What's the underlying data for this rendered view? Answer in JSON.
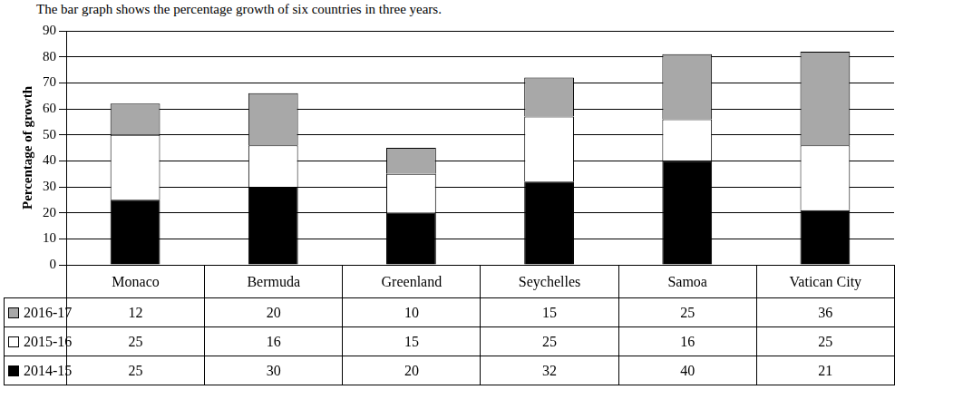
{
  "chart_data": {
    "type": "bar",
    "title": "The bar graph shows the percentage growth of six countries in three years.",
    "y_label": "Percentage of growth",
    "categories": [
      "Monaco",
      "Bermuda",
      "Greenland",
      "Seychelles",
      "Samoa",
      "Vatican City"
    ],
    "series": [
      {
        "name": "2014-15",
        "color": "#000000",
        "values": [
          25,
          30,
          20,
          32,
          40,
          21
        ]
      },
      {
        "name": "2015-16",
        "color": "#ffffff",
        "values": [
          25,
          16,
          15,
          25,
          16,
          25
        ]
      },
      {
        "name": "2016-17",
        "color": "#a8a8a8",
        "values": [
          12,
          20,
          10,
          15,
          25,
          36
        ]
      }
    ],
    "stacked": true,
    "ylim": [
      0,
      90
    ],
    "yticks": [
      0,
      10,
      20,
      30,
      40,
      50,
      60,
      70,
      80,
      90
    ],
    "grid": true,
    "tick_labels": "y"
  }
}
